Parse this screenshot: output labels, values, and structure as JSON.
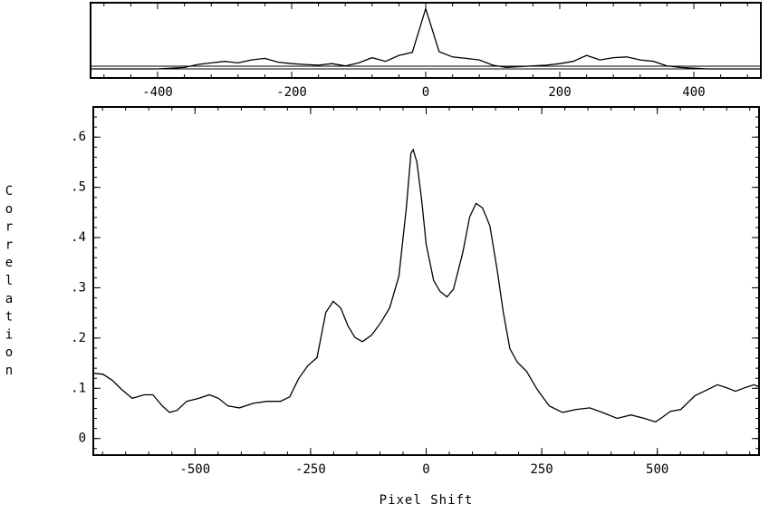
{
  "chart_data": [
    {
      "type": "line",
      "x": [
        -500,
        -480,
        -460,
        -440,
        -420,
        -400,
        -380,
        -360,
        -340,
        -320,
        -300,
        -280,
        -260,
        -240,
        -220,
        -200,
        -180,
        -160,
        -140,
        -120,
        -100,
        -80,
        -60,
        -40,
        -20,
        0,
        20,
        40,
        60,
        80,
        100,
        120,
        140,
        160,
        180,
        200,
        220,
        240,
        260,
        280,
        300,
        320,
        340,
        360,
        380,
        400,
        420,
        440,
        460,
        480,
        500
      ],
      "values": [
        0.12,
        0.12,
        0.12,
        0.12,
        0.12,
        0.12,
        0.13,
        0.14,
        0.18,
        0.2,
        0.22,
        0.2,
        0.24,
        0.26,
        0.21,
        0.19,
        0.18,
        0.17,
        0.19,
        0.16,
        0.2,
        0.27,
        0.22,
        0.3,
        0.34,
        0.92,
        0.35,
        0.28,
        0.26,
        0.24,
        0.17,
        0.14,
        0.15,
        0.16,
        0.17,
        0.19,
        0.22,
        0.3,
        0.24,
        0.27,
        0.28,
        0.24,
        0.22,
        0.16,
        0.14,
        0.13,
        0.12,
        0.12,
        0.12,
        0.12,
        0.12
      ],
      "color": "#000000",
      "xlim": [
        -500,
        500
      ],
      "xticks": [
        -400,
        -200,
        0,
        200,
        400
      ],
      "ylim": [
        0,
        1
      ]
    },
    {
      "type": "line",
      "xlabel": "Pixel Shift",
      "ylabel": "Correlation",
      "x": [
        -720,
        -699,
        -679,
        -659,
        -636,
        -610,
        -591,
        -571,
        -555,
        -539,
        -518,
        -492,
        -469,
        -449,
        -429,
        -404,
        -374,
        -344,
        -315,
        -295,
        -276,
        -256,
        -236,
        -217,
        -201,
        -185,
        -169,
        -154,
        -138,
        -118,
        -98,
        -79,
        -59,
        -43,
        -33,
        -28,
        -20,
        -10,
        0,
        16,
        30,
        45,
        59,
        79,
        94,
        108,
        122,
        138,
        154,
        167,
        181,
        197,
        217,
        240,
        266,
        295,
        325,
        354,
        384,
        413,
        443,
        472,
        496,
        512,
        528,
        551,
        581,
        610,
        630,
        650,
        669,
        689,
        709,
        720
      ],
      "values": [
        0.13,
        0.128,
        0.116,
        0.098,
        0.08,
        0.087,
        0.087,
        0.065,
        0.052,
        0.056,
        0.074,
        0.08,
        0.087,
        0.08,
        0.065,
        0.061,
        0.07,
        0.074,
        0.074,
        0.083,
        0.119,
        0.145,
        0.161,
        0.251,
        0.273,
        0.26,
        0.224,
        0.201,
        0.193,
        0.206,
        0.231,
        0.26,
        0.323,
        0.459,
        0.568,
        0.575,
        0.55,
        0.477,
        0.387,
        0.315,
        0.293,
        0.282,
        0.297,
        0.369,
        0.441,
        0.468,
        0.459,
        0.423,
        0.333,
        0.251,
        0.179,
        0.152,
        0.134,
        0.098,
        0.065,
        0.052,
        0.058,
        0.061,
        0.051,
        0.04,
        0.047,
        0.04,
        0.033,
        0.043,
        0.054,
        0.058,
        0.085,
        0.098,
        0.107,
        0.101,
        0.094,
        0.101,
        0.107,
        0.103
      ],
      "color": "#000000",
      "xlim": [
        -720,
        720
      ],
      "xticks": [
        -500,
        -250,
        0,
        250,
        500
      ],
      "ylim": [
        -0.033,
        0.66
      ],
      "yticks": [
        0,
        {
          "value": 0.1,
          "label": ".1"
        },
        {
          "value": 0.2,
          "label": ".2"
        },
        {
          "value": 0.3,
          "label": ".3"
        },
        {
          "value": 0.4,
          "label": ".4"
        },
        {
          "value": 0.5,
          "label": ".5"
        },
        {
          "value": 0.6,
          "label": ".6"
        }
      ]
    }
  ]
}
